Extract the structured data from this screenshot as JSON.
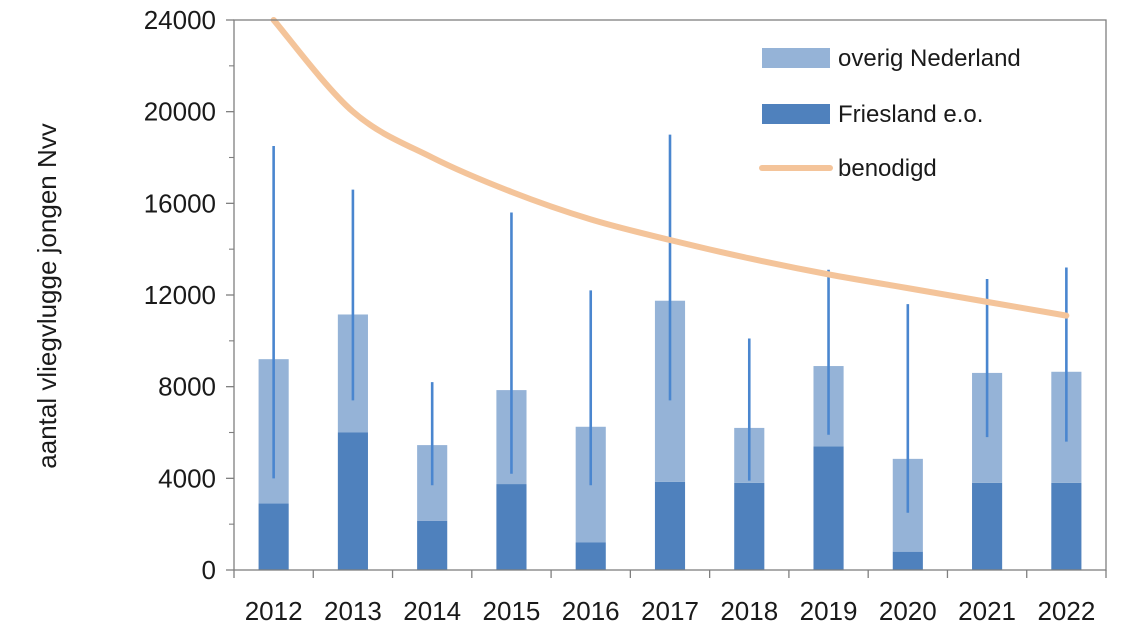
{
  "chart_data": {
    "type": "bar",
    "stacked": true,
    "ylabel": "aantal vliegvlugge jongen Nvv",
    "xlabel": "",
    "ylim": [
      0,
      24000
    ],
    "yticks": [
      0,
      4000,
      8000,
      12000,
      16000,
      20000,
      24000
    ],
    "categories": [
      "2012",
      "2013",
      "2014",
      "2015",
      "2016",
      "2017",
      "2018",
      "2019",
      "2020",
      "2021",
      "2022"
    ],
    "series": [
      {
        "name": "Friesland e.o.",
        "color": "#4f81bd",
        "values": [
          2900,
          6000,
          2150,
          3750,
          1200,
          3850,
          3800,
          5400,
          800,
          3800,
          3800
        ]
      },
      {
        "name": "overig Nederland",
        "color": "#95b3d7",
        "values": [
          6300,
          5150,
          3300,
          4100,
          5050,
          7900,
          2400,
          3500,
          4050,
          4800,
          4850
        ]
      }
    ],
    "error_bars": {
      "color": "#4a86cf",
      "low": [
        4000,
        7400,
        3700,
        4200,
        3700,
        7400,
        3900,
        5900,
        2500,
        5800,
        5600
      ],
      "high": [
        18500,
        16600,
        8200,
        15600,
        12200,
        19000,
        10100,
        13100,
        11600,
        12700,
        13200
      ]
    },
    "line": {
      "name": "benodigd",
      "color": "#f4c49a",
      "x": [
        2012,
        2013,
        2014,
        2015,
        2016,
        2017,
        2018,
        2019,
        2020,
        2021,
        2022
      ],
      "values": [
        24000,
        20000,
        18000,
        16500,
        15300,
        14400,
        13600,
        12900,
        12300,
        11700,
        11100
      ]
    },
    "legend": {
      "position": "top-right",
      "items": [
        "overig Nederland",
        "Friesland e.o.",
        "benodigd"
      ]
    },
    "grid": false
  }
}
